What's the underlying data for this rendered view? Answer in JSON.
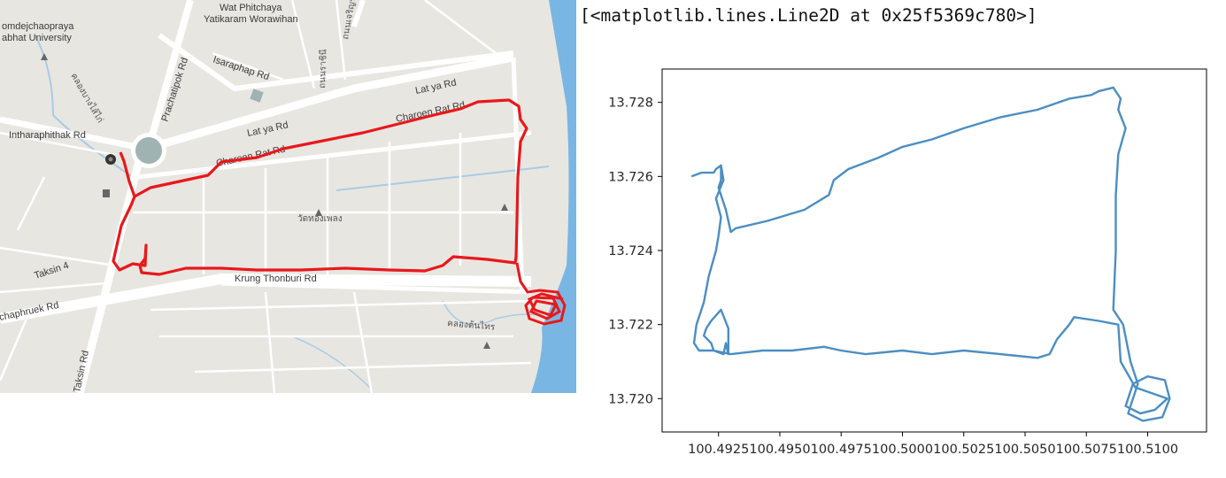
{
  "map": {
    "labels": {
      "wat_phitchaya_1": "Wat Phitchaya",
      "wat_phitchaya_2": "Yatikaram Worawihan",
      "university_1": "omdejchaopraya",
      "university_2": "abhat University",
      "prachatipok": "Prachatipok Rd",
      "isaraphap": "Isaraphap Rd",
      "lat_ya_1": "Lat ya Rd",
      "lat_ya_2": "Lat ya Rd",
      "charoen_rat_1": "Charoen Rat Rd",
      "charoen_rat_2": "Charoen Rat Rd",
      "intharaphithak": "Intharaphithak Rd",
      "taksin_4": "Taksin 4",
      "chaphruek": "chaphruek Rd",
      "krung_thonburi": "Krung Thonburi Rd",
      "taksin": "Taksin Rd",
      "thai_road": "ถนนราชินี",
      "thai_wat": "วัดทองเพลง",
      "thai_canal_1": "คลองบางไส้ไก่",
      "thai_canal_2": "คลองต้นไทร",
      "thai_top": "ถนนเจริญรัถ"
    },
    "colors": {
      "route": "#e8181b",
      "land": "#e8e6e1",
      "road": "#ffffff",
      "water": "#79b6e3",
      "roundabout": "#9fb3b3"
    }
  },
  "output": {
    "repr": "[<matplotlib.lines.Line2D at 0x25f5369c780>]"
  },
  "chart_data": {
    "type": "line",
    "series_color": "#4b8ec2",
    "xlim": [
      100.4902,
      100.5124
    ],
    "ylim": [
      13.7191,
      13.7289
    ],
    "xticks": [
      100.4925,
      100.495,
      100.4975,
      100.5,
      100.5025,
      100.505,
      100.5075,
      100.51
    ],
    "xtick_labels": [
      "100.4925",
      "100.4950",
      "100.4975",
      "100.5000",
      "100.5025",
      "100.5050",
      "100.5075",
      "100.5100"
    ],
    "yticks": [
      13.72,
      13.722,
      13.724,
      13.726,
      13.728
    ],
    "ytick_labels": [
      "13.720",
      "13.722",
      "13.724",
      "13.726",
      "13.728"
    ],
    "grid": false,
    "x": [
      100.4914,
      100.4918,
      100.4923,
      100.4924,
      100.4926,
      100.4926,
      100.4925,
      100.4928,
      100.493,
      100.4932,
      100.4945,
      100.496,
      100.497,
      100.4972,
      100.4978,
      100.499,
      100.5,
      100.5012,
      100.5025,
      100.504,
      100.5055,
      100.5068,
      100.5077,
      100.508,
      100.5086,
      100.5089,
      100.5088,
      100.5091,
      100.5088,
      100.5087,
      100.5087,
      100.5086,
      100.509,
      100.5093,
      100.5096,
      100.5092,
      100.5098,
      100.5106,
      100.5109,
      100.5107,
      100.51,
      100.5094,
      100.5091,
      100.5097,
      100.5103,
      100.5108,
      100.5095,
      100.5089,
      100.5088,
      100.508,
      100.507,
      100.5068,
      100.5063,
      100.506,
      100.5055,
      100.504,
      100.5025,
      100.5012,
      100.5,
      100.4985,
      100.4975,
      100.4968,
      100.4955,
      100.4943,
      100.493,
      100.4923,
      100.4922,
      100.4919,
      100.492,
      100.4922,
      100.4926,
      100.4929,
      100.4929,
      100.4928,
      100.4927,
      100.4923,
      100.4917,
      100.4915,
      100.4916,
      100.4919,
      100.4921,
      100.4924,
      100.4925,
      100.4926,
      100.4924,
      100.4927,
      100.4926
    ],
    "y": [
      13.726,
      13.7261,
      13.7261,
      13.7262,
      13.7263,
      13.7259,
      13.7257,
      13.7251,
      13.7245,
      13.7246,
      13.7248,
      13.7251,
      13.7255,
      13.7259,
      13.7262,
      13.7265,
      13.7268,
      13.727,
      13.7273,
      13.7276,
      13.7278,
      13.7281,
      13.7282,
      13.7283,
      13.7284,
      13.7281,
      13.7278,
      13.7273,
      13.7266,
      13.7255,
      13.724,
      13.7224,
      13.722,
      13.721,
      13.7204,
      13.7196,
      13.7194,
      13.7195,
      13.72,
      13.7205,
      13.7206,
      13.7204,
      13.7198,
      13.7196,
      13.7197,
      13.72,
      13.7203,
      13.721,
      13.722,
      13.7221,
      13.7222,
      13.722,
      13.7216,
      13.7212,
      13.7211,
      13.7212,
      13.7213,
      13.7212,
      13.7213,
      13.7212,
      13.7213,
      13.7214,
      13.7213,
      13.7213,
      13.7212,
      13.7213,
      13.7215,
      13.7217,
      13.7219,
      13.7221,
      13.7224,
      13.7219,
      13.7212,
      13.7215,
      13.7212,
      13.7213,
      13.7213,
      13.7215,
      13.722,
      13.7226,
      13.7233,
      13.724,
      13.7244,
      13.7249,
      13.7254,
      13.7259,
      13.7263
    ]
  }
}
